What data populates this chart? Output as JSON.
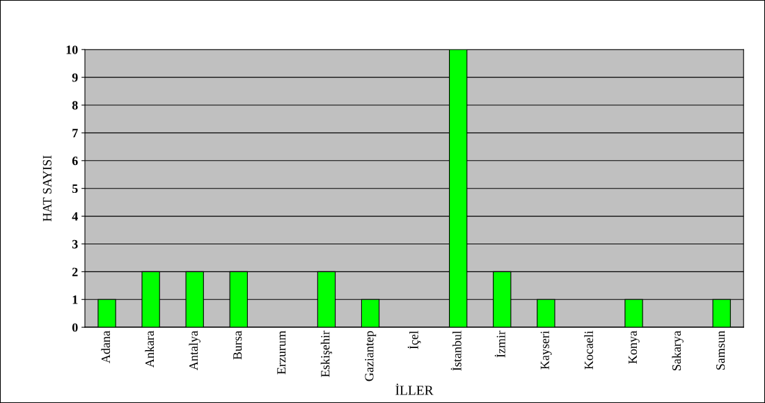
{
  "chart_data": {
    "type": "bar",
    "xlabel": "İLLER",
    "ylabel": "HAT SAYISI",
    "categories": [
      "Adana",
      "Ankara",
      "Antalya",
      "Bursa",
      "Erzurum",
      "Eskişehir",
      "Gaziantep",
      "İçel",
      "İstanbul",
      "İzmir",
      "Kayseri",
      "Kocaeli",
      "Konya",
      "Sakarya",
      "Samsun"
    ],
    "values": [
      1,
      2,
      2,
      2,
      0,
      2,
      1,
      0,
      10,
      2,
      1,
      0,
      1,
      0,
      1
    ],
    "color": "#00ff00",
    "ylim": [
      0,
      10
    ],
    "yticks": [
      0,
      1,
      2,
      3,
      4,
      5,
      6,
      7,
      8,
      9,
      10
    ],
    "grid": "y"
  }
}
